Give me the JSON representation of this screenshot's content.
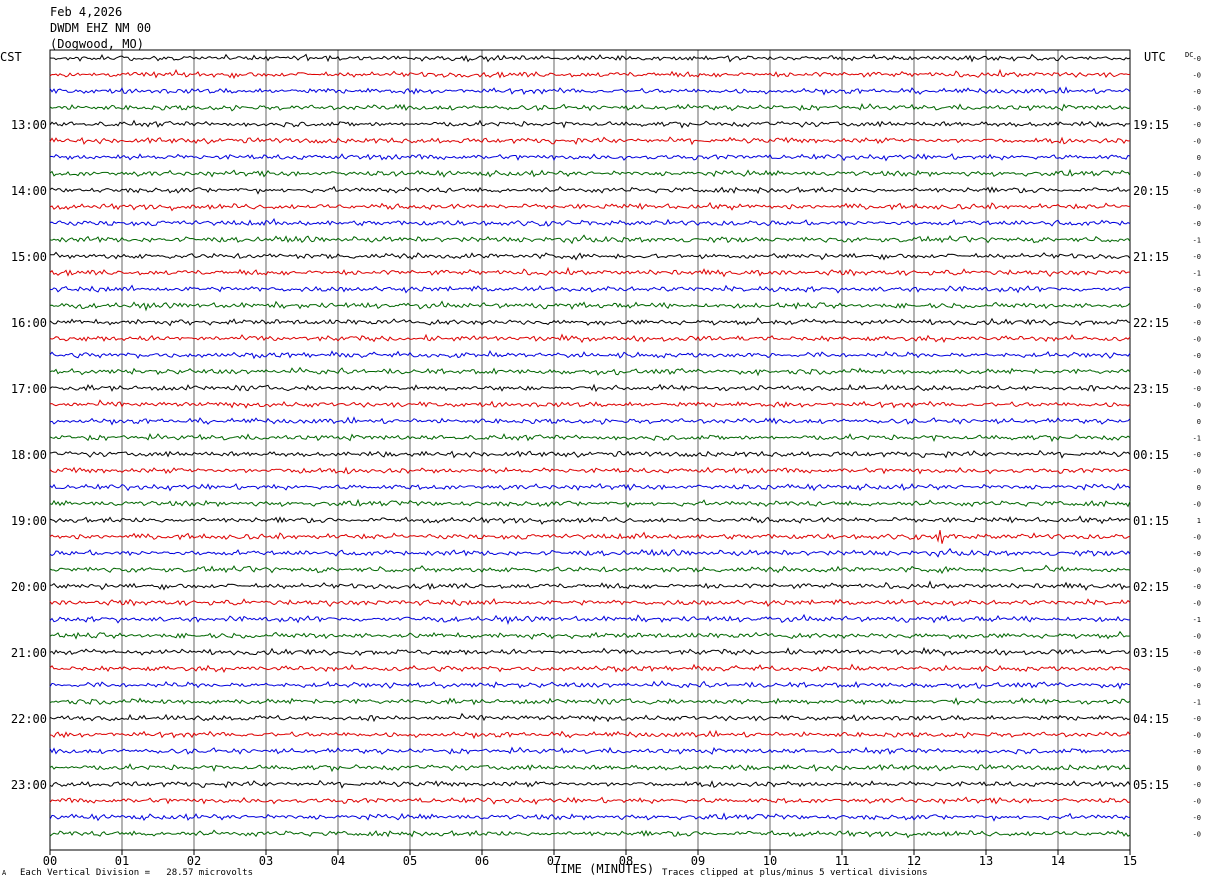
{
  "header": {
    "date": "Feb 4,2026",
    "station": "DWDM EHZ NM 00",
    "location": "(Dogwood, MO)"
  },
  "left_zone": "CST",
  "right_zone": "UTC",
  "dc_label": "DC",
  "footer": {
    "scale_note": "Each Vertical Division =   28.57 microvolts",
    "x_title": "TIME (MINUTES)",
    "clip_note": "Traces clipped at plus/minus 5 vertical divisions",
    "corner_mark": "A"
  },
  "colors": {
    "trace_cycle": [
      "#000000",
      "#dd0000",
      "#0000dd",
      "#006600"
    ],
    "grid": "#000000",
    "background": "#ffffff"
  },
  "chart_data": {
    "type": "line",
    "subtype": "helicorder",
    "x": {
      "label": "TIME (MINUTES)",
      "range": [
        0,
        15
      ],
      "ticks": [
        "00",
        "01",
        "02",
        "03",
        "04",
        "05",
        "06",
        "07",
        "08",
        "09",
        "10",
        "11",
        "12",
        "13",
        "14",
        "15"
      ]
    },
    "rows_per_hour": 4,
    "row_minutes": 15,
    "hour_labels_left": [
      "13:00",
      "14:00",
      "15:00",
      "16:00",
      "17:00",
      "18:00",
      "19:00",
      "20:00",
      "21:00",
      "22:00",
      "23:00"
    ],
    "hour_labels_right": [
      "19:15",
      "20:15",
      "21:15",
      "22:15",
      "23:15",
      "00:15",
      "01:15",
      "02:15",
      "03:15",
      "04:15",
      "05:15"
    ],
    "first_labeled_row": 4,
    "trace_count": 48,
    "dc_offsets": [
      "-0",
      "-0",
      "-0",
      "-0",
      "-0",
      "-0",
      "0",
      "-0",
      "-0",
      "-0",
      "-0",
      "-1",
      "-0",
      "-1",
      "-0",
      "-0",
      "-0",
      "-0",
      "-0",
      "-0",
      "-0",
      "-0",
      "0",
      "-1",
      "-0",
      "-0",
      "0",
      "-0",
      "1",
      "-0",
      "-0",
      "-0",
      "-0",
      "-0",
      "-1",
      "-0",
      "-0",
      "-0",
      "-0",
      "-1",
      "-0",
      "-0",
      "-0",
      "0",
      "-0",
      "-0",
      "-0",
      "-0"
    ],
    "events": [
      {
        "row": 29,
        "minute": 12.35,
        "amplitude_div": 5,
        "duration_min": 0.25
      },
      {
        "row": 31,
        "minute": 13.85,
        "amplitude_div": 2.4,
        "duration_min": 0.25
      },
      {
        "row": 25,
        "minute": 3.5,
        "amplitude_div": 1.2,
        "duration_min": 0.25
      },
      {
        "row": 7,
        "minute": 4.8,
        "amplitude_div": 1.0,
        "duration_min": 0.25
      },
      {
        "row": 1,
        "minute": 13.9,
        "amplitude_div": 1.0,
        "duration_min": 0.2
      }
    ],
    "scale_microvolts_per_division": 28.57,
    "clip_divisions": 5
  }
}
